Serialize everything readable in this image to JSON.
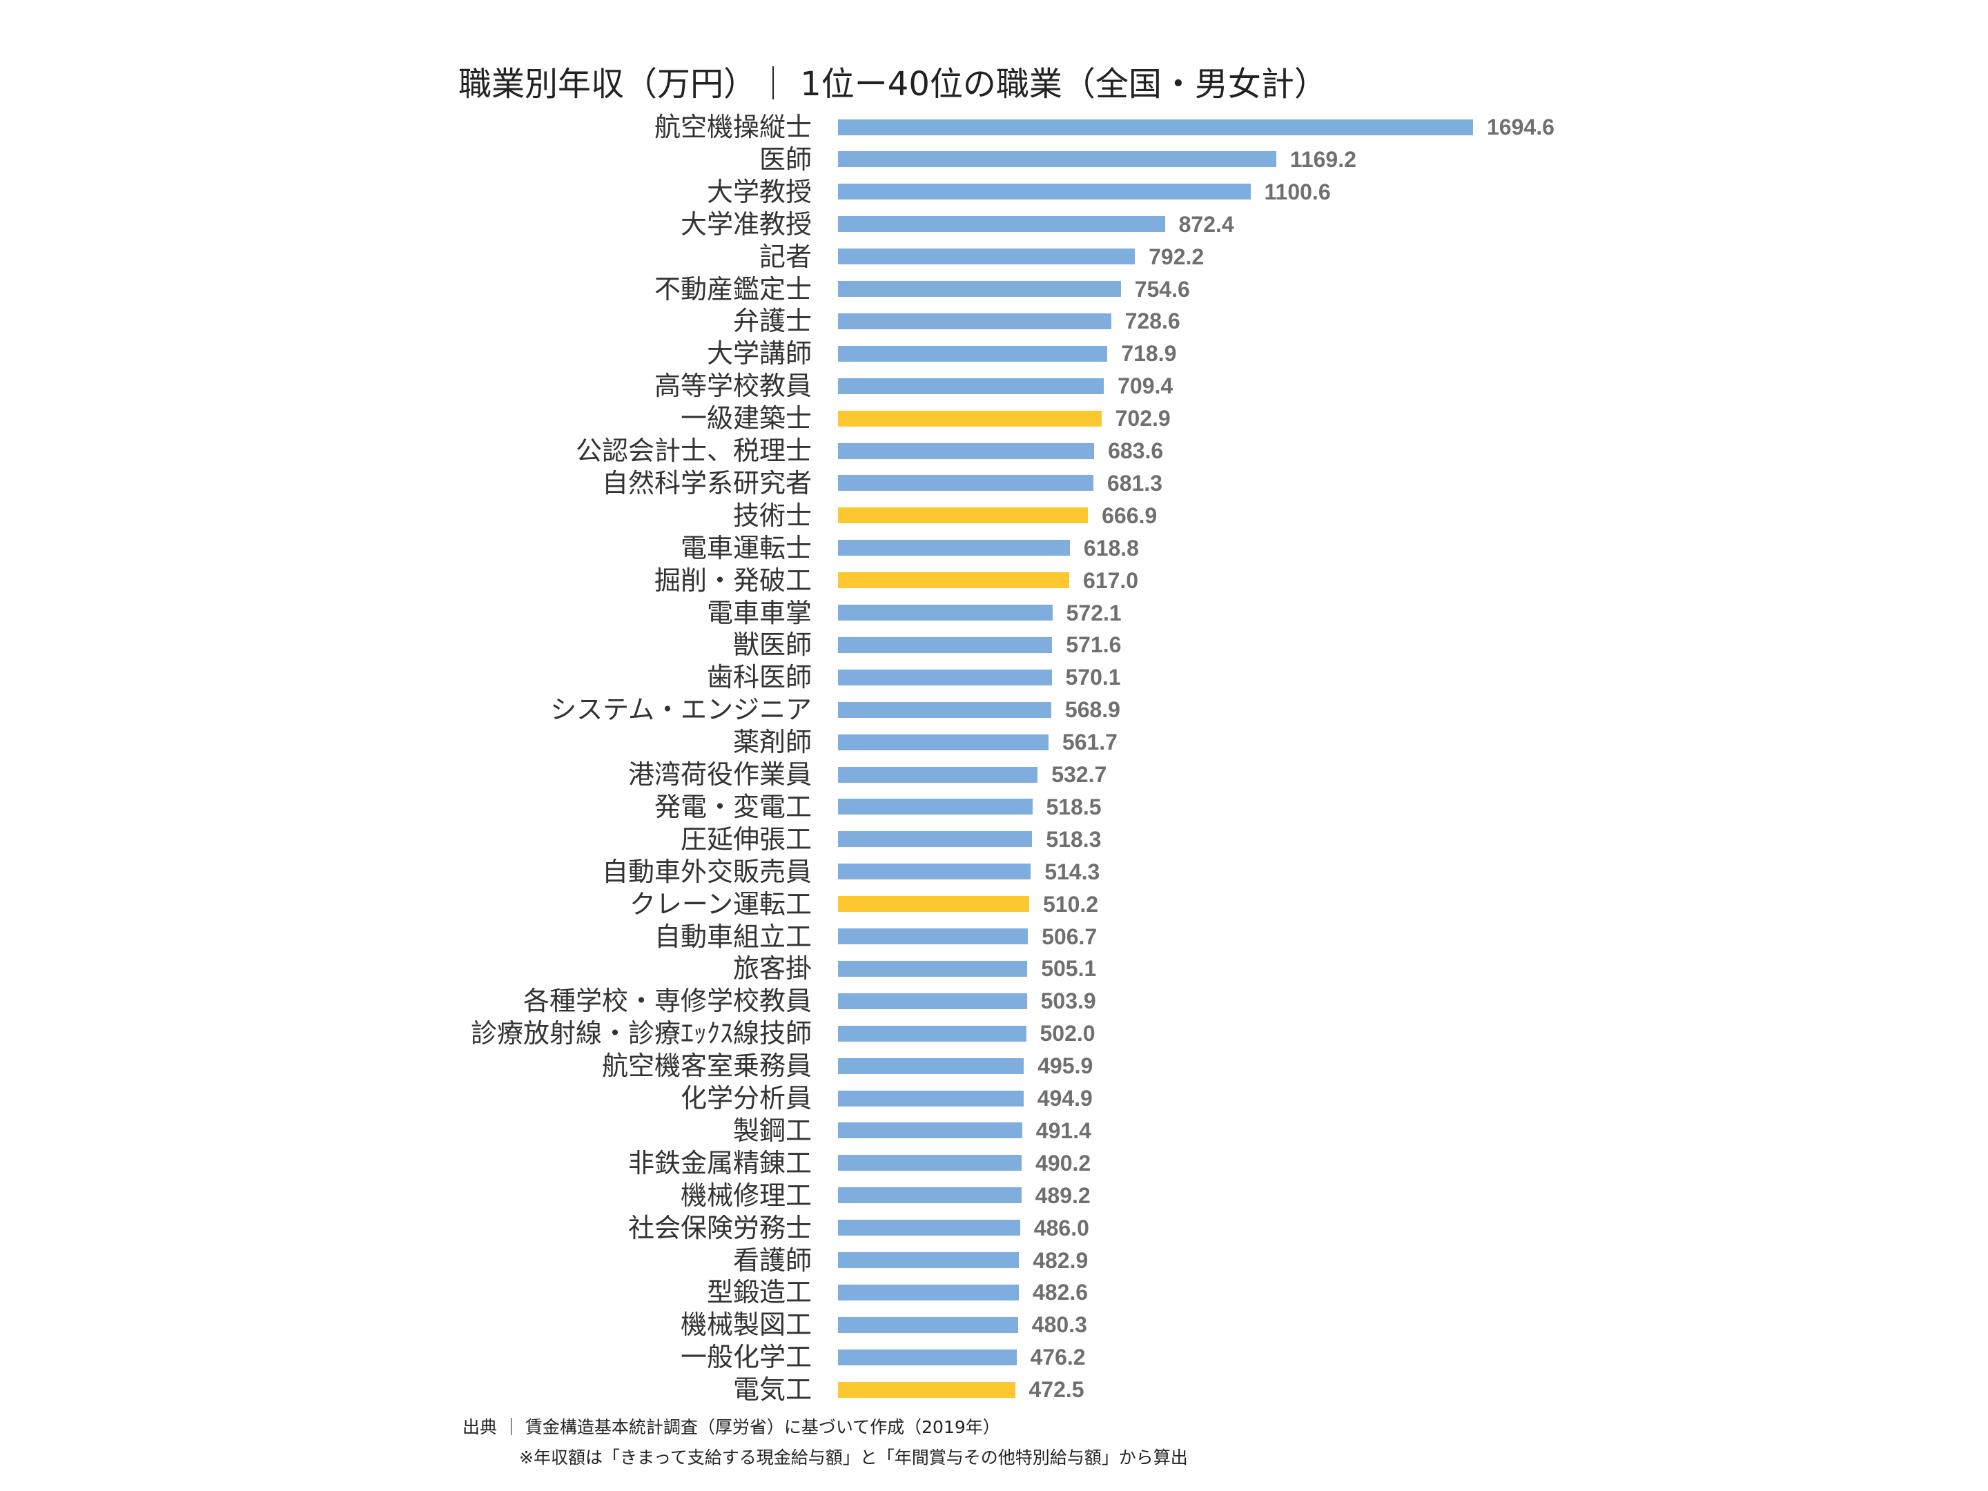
{
  "chart_data": {
    "type": "bar",
    "orientation": "horizontal",
    "title": "職業別年収（万円）｜ 1位ー40位の職業（全国・男女計）",
    "categories": [
      "航空機操縦士",
      "医師",
      "大学教授",
      "大学准教授",
      "記者",
      "不動産鑑定士",
      "弁護士",
      "大学講師",
      "高等学校教員",
      "一級建築士",
      "公認会計士、税理士",
      "自然科学系研究者",
      "技術士",
      "電車運転士",
      "掘削・発破工",
      "電車車掌",
      "獣医師",
      "歯科医師",
      "システム・エンジニア",
      "薬剤師",
      "港湾荷役作業員",
      "発電・変電工",
      "圧延伸張工",
      "自動車外交販売員",
      "クレーン運転工",
      "自動車組立工",
      "旅客掛",
      "各種学校・専修学校教員",
      "診療放射線・診療ｴｯｸｽ線技師",
      "航空機客室乗務員",
      "化学分析員",
      "製鋼工",
      "非鉄金属精錬工",
      "機械修理工",
      "社会保険労務士",
      "看護師",
      "型鍛造工",
      "機械製図工",
      "一般化学工",
      "電気工"
    ],
    "values": [
      1694.6,
      1169.2,
      1100.6,
      872.4,
      792.2,
      754.6,
      728.6,
      718.9,
      709.4,
      702.9,
      683.6,
      681.3,
      666.9,
      618.8,
      617.0,
      572.1,
      571.6,
      570.1,
      568.9,
      561.7,
      532.7,
      518.5,
      518.3,
      514.3,
      510.2,
      506.7,
      505.1,
      503.9,
      502.0,
      495.9,
      494.9,
      491.4,
      490.2,
      489.2,
      486.0,
      482.9,
      482.6,
      480.3,
      476.2,
      472.5
    ],
    "value_labels": [
      "1694.6",
      "1169.2",
      "1100.6",
      "872.4",
      "792.2",
      "754.6",
      "728.6",
      "718.9",
      "709.4",
      "702.9",
      "683.6",
      "681.3",
      "666.9",
      "618.8",
      "617.0",
      "572.1",
      "571.6",
      "570.1",
      "568.9",
      "561.7",
      "532.7",
      "518.5",
      "518.3",
      "514.3",
      "510.2",
      "506.7",
      "505.1",
      "503.9",
      "502.0",
      "495.9",
      "494.9",
      "491.4",
      "490.2",
      "489.2",
      "486.0",
      "482.9",
      "482.6",
      "480.3",
      "476.2",
      "472.5"
    ],
    "highlighted": [
      "一級建築士",
      "技術士",
      "掘削・発破工",
      "クレーン運転工",
      "電気工"
    ],
    "colors": {
      "default": "#7eadde",
      "highlight": "#fdc82f"
    },
    "xlim": [
      0,
      1694.6
    ],
    "grid": false,
    "legend": "none"
  },
  "footer": {
    "source": "出典 ｜ 賃金構造基本統計調査（厚労省）に基づいて作成（2019年）",
    "note": "※年収額は「きまって支給する現金給与額」と「年間賞与その他特別給与額」から算出"
  }
}
